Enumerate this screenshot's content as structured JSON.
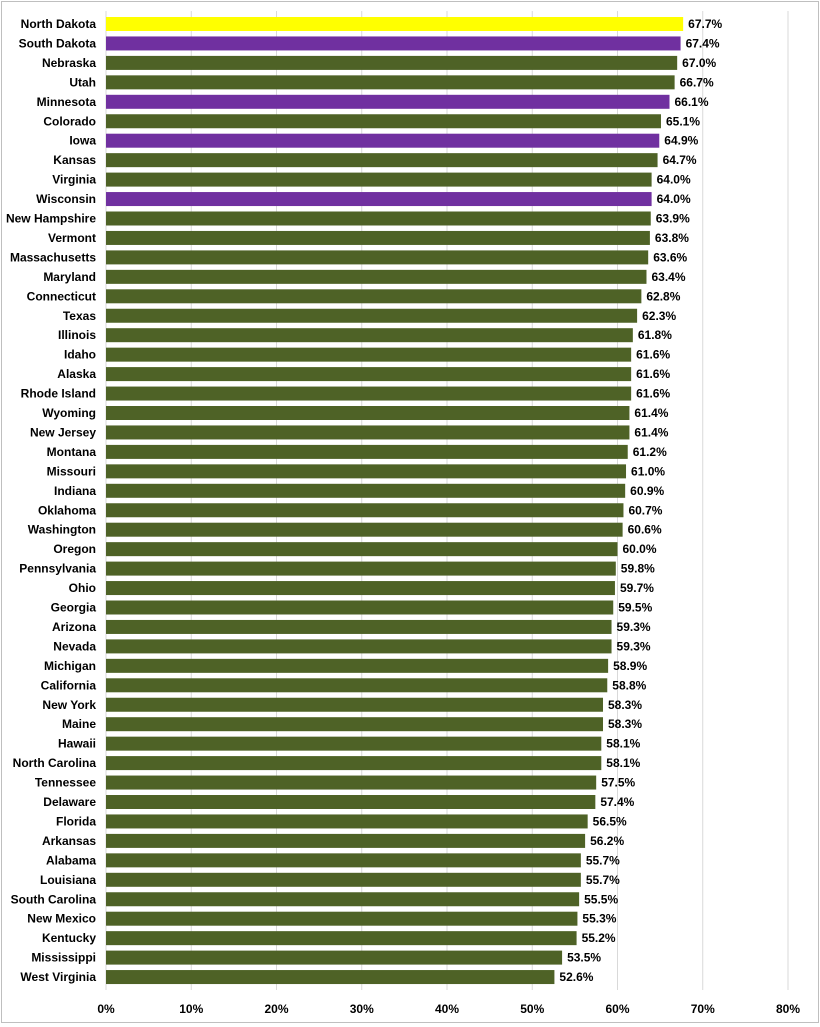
{
  "chart_data": {
    "type": "bar",
    "orientation": "horizontal",
    "title": "",
    "xlabel": "",
    "ylabel": "",
    "xlim": [
      0,
      80
    ],
    "grid": "vertical",
    "legend": "none",
    "ticks": [
      "0%",
      "10%",
      "20%",
      "30%",
      "40%",
      "50%",
      "60%",
      "70%",
      "80%"
    ],
    "colors": {
      "default": "#4e6226",
      "highlight_yellow": "#ffff00",
      "highlight_purple": "#7030a0"
    },
    "categories": [
      "North Dakota",
      "South Dakota",
      "Nebraska",
      "Utah",
      "Minnesota",
      "Colorado",
      "Iowa",
      "Kansas",
      "Virginia",
      "Wisconsin",
      "New Hampshire",
      "Vermont",
      "Massachusetts",
      "Maryland",
      "Connecticut",
      "Texas",
      "Illinois",
      "Idaho",
      "Alaska",
      "Rhode Island",
      "Wyoming",
      "New Jersey",
      "Montana",
      "Missouri",
      "Indiana",
      "Oklahoma",
      "Washington",
      "Oregon",
      "Pennsylvania",
      "Ohio",
      "Georgia",
      "Arizona",
      "Nevada",
      "Michigan",
      "California",
      "New York",
      "Maine",
      "Hawaii",
      "North Carolina",
      "Tennessee",
      "Delaware",
      "Florida",
      "Arkansas",
      "Alabama",
      "Louisiana",
      "South Carolina",
      "New Mexico",
      "Kentucky",
      "Mississippi",
      "West Virginia"
    ],
    "values": [
      67.7,
      67.4,
      67.0,
      66.7,
      66.1,
      65.1,
      64.9,
      64.7,
      64.0,
      64.0,
      63.9,
      63.8,
      63.6,
      63.4,
      62.8,
      62.3,
      61.8,
      61.6,
      61.6,
      61.6,
      61.4,
      61.4,
      61.2,
      61.0,
      60.9,
      60.7,
      60.6,
      60.0,
      59.8,
      59.7,
      59.5,
      59.3,
      59.3,
      58.9,
      58.8,
      58.3,
      58.3,
      58.1,
      58.1,
      57.5,
      57.4,
      56.5,
      56.2,
      55.7,
      55.7,
      55.5,
      55.3,
      55.2,
      53.5,
      52.6
    ],
    "labels": [
      "67.7%",
      "67.4%",
      "67.0%",
      "66.7%",
      "66.1%",
      "65.1%",
      "64.9%",
      "64.7%",
      "64.0%",
      "64.0%",
      "63.9%",
      "63.8%",
      "63.6%",
      "63.4%",
      "62.8%",
      "62.3%",
      "61.8%",
      "61.6%",
      "61.6%",
      "61.6%",
      "61.4%",
      "61.4%",
      "61.2%",
      "61.0%",
      "60.9%",
      "60.7%",
      "60.6%",
      "60.0%",
      "59.8%",
      "59.7%",
      "59.5%",
      "59.3%",
      "59.3%",
      "58.9%",
      "58.8%",
      "58.3%",
      "58.3%",
      "58.1%",
      "58.1%",
      "57.5%",
      "57.4%",
      "56.5%",
      "56.2%",
      "55.7%",
      "55.7%",
      "55.5%",
      "55.3%",
      "55.2%",
      "53.5%",
      "52.6%"
    ],
    "bar_colors": [
      "#ffff00",
      "#7030a0",
      "#4e6226",
      "#4e6226",
      "#7030a0",
      "#4e6226",
      "#7030a0",
      "#4e6226",
      "#4e6226",
      "#7030a0",
      "#4e6226",
      "#4e6226",
      "#4e6226",
      "#4e6226",
      "#4e6226",
      "#4e6226",
      "#4e6226",
      "#4e6226",
      "#4e6226",
      "#4e6226",
      "#4e6226",
      "#4e6226",
      "#4e6226",
      "#4e6226",
      "#4e6226",
      "#4e6226",
      "#4e6226",
      "#4e6226",
      "#4e6226",
      "#4e6226",
      "#4e6226",
      "#4e6226",
      "#4e6226",
      "#4e6226",
      "#4e6226",
      "#4e6226",
      "#4e6226",
      "#4e6226",
      "#4e6226",
      "#4e6226",
      "#4e6226",
      "#4e6226",
      "#4e6226",
      "#4e6226",
      "#4e6226",
      "#4e6226",
      "#4e6226",
      "#4e6226",
      "#4e6226",
      "#4e6226"
    ]
  }
}
